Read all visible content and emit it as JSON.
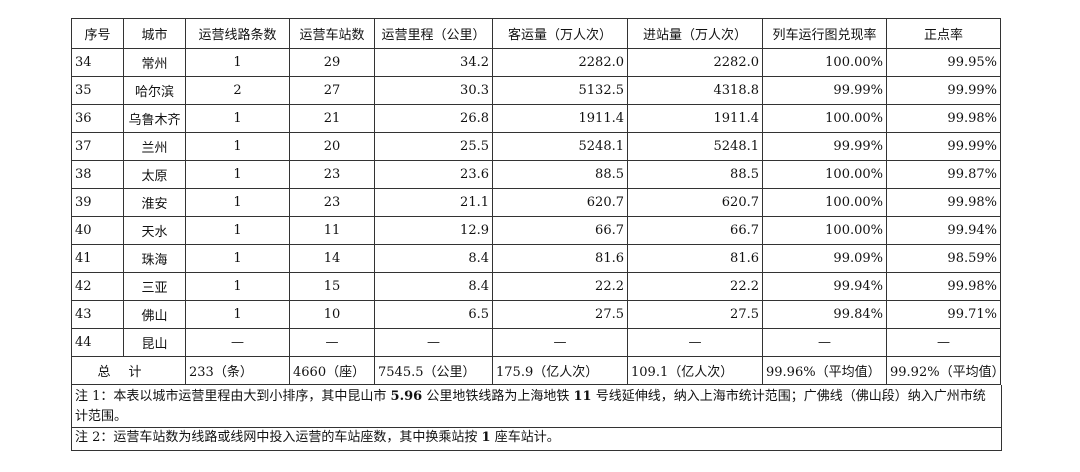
{
  "headers": [
    "序号",
    "城市",
    "运营线路条数",
    "运营车站数",
    "运营里程（公里）",
    "客运量（万人次）",
    "进站量（万人次）",
    "列车运行图兑现率",
    "正点率"
  ],
  "rows": [
    [
      "34",
      "常州",
      "1",
      "29",
      "34.2",
      "2282.0",
      "2282.0",
      "100.00%",
      "99.95%"
    ],
    [
      "35",
      "哈尔滨",
      "2",
      "27",
      "30.3",
      "5132.5",
      "4318.8",
      "99.99%",
      "99.99%"
    ],
    [
      "36",
      "乌鲁木齐",
      "1",
      "21",
      "26.8",
      "1911.4",
      "1911.4",
      "100.00%",
      "99.98%"
    ],
    [
      "37",
      "兰州",
      "1",
      "20",
      "25.5",
      "5248.1",
      "5248.1",
      "99.99%",
      "99.99%"
    ],
    [
      "38",
      "太原",
      "1",
      "23",
      "23.6",
      "88.5",
      "88.5",
      "100.00%",
      "99.87%"
    ],
    [
      "39",
      "淮安",
      "1",
      "23",
      "21.1",
      "620.7",
      "620.7",
      "100.00%",
      "99.98%"
    ],
    [
      "40",
      "天水",
      "1",
      "11",
      "12.9",
      "66.7",
      "66.7",
      "100.00%",
      "99.94%"
    ],
    [
      "41",
      "珠海",
      "1",
      "14",
      "8.4",
      "81.6",
      "81.6",
      "99.09%",
      "98.59%"
    ],
    [
      "42",
      "三亚",
      "1",
      "15",
      "8.4",
      "22.2",
      "22.2",
      "99.94%",
      "99.98%"
    ],
    [
      "43",
      "佛山",
      "1",
      "10",
      "6.5",
      "27.5",
      "27.5",
      "99.84%",
      "99.71%"
    ],
    [
      "44",
      "昆山",
      "—",
      "—",
      "—",
      "—",
      "—",
      "—",
      "—"
    ]
  ],
  "total": {
    "label": "总计",
    "values": [
      "233（条）",
      "4660（座）",
      "7545.5（公里）",
      "175.9（亿人次）",
      "109.1（亿人次）",
      "99.96%（平均值）",
      "99.92%（平均值）"
    ]
  },
  "notes": {
    "note1_a": "注 1：本表以城市运营里程由大到小排序，其中昆山市 ",
    "note1_b": "5.96",
    "note1_c": " 公里地铁线路为上海地铁 ",
    "note1_d": "11",
    "note1_e": " 号线延伸线，纳入上海市统计范围；广佛线（佛山段）纳入广州市统计范围。",
    "note2_a": "注 2：运营车站数为线路或线网中投入运营的车站座数，其中换乘站按 ",
    "note2_b": "1",
    "note2_c": " 座车站计。"
  }
}
